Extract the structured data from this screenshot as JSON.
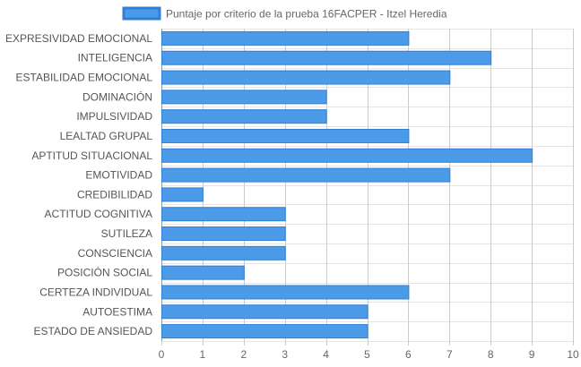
{
  "chart_data": {
    "type": "bar",
    "orientation": "horizontal",
    "legend": {
      "position": "top-center"
    },
    "series": [
      {
        "name": "Puntaje por criterio de la prueba 16FACPER - Itzel Heredia",
        "color": "#4c9be8",
        "border_color": "#2f7fd6",
        "values": [
          6,
          8,
          7,
          4,
          4,
          6,
          9,
          7,
          1,
          3,
          3,
          3,
          2,
          6,
          5,
          5
        ]
      }
    ],
    "categories": [
      "EXPRESIVIDAD EMOCIONAL",
      "INTELIGENCIA",
      "ESTABILIDAD EMOCIONAL",
      "DOMINACIÓN",
      "IMPULSIVIDAD",
      "LEALTAD GRUPAL",
      "APTITUD SITUACIONAL",
      "EMOTIVIDAD",
      "CREDIBILIDAD",
      "ACTITUD COGNITIVA",
      "SUTILEZA",
      "CONSCIENCIA",
      "POSICIÓN SOCIAL",
      "CERTEZA INDIVIDUAL",
      "AUTOESTIMA",
      "ESTADO DE ANSIEDAD"
    ],
    "xlim": [
      0,
      10
    ],
    "x_ticks": [
      0,
      1,
      2,
      3,
      4,
      5,
      6,
      7,
      8,
      9,
      10
    ],
    "grid": true
  }
}
